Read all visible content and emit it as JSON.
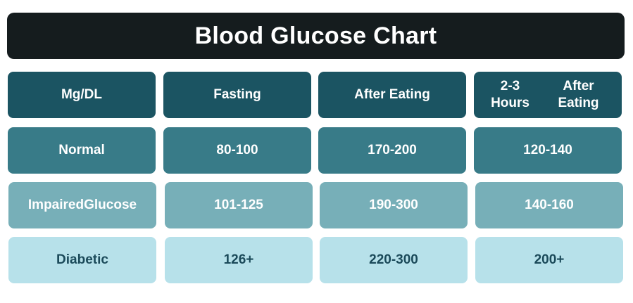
{
  "chart_data": {
    "type": "table",
    "title": "Blood Glucose Chart",
    "columns": [
      "Mg/DL",
      "Fasting",
      "After Eating",
      "2-3 Hours\nAfter Eating"
    ],
    "rows": [
      [
        "Normal",
        "80-100",
        "170-200",
        "120-140"
      ],
      [
        "Impaired\nGlucose",
        "101-125",
        "190-300",
        "140-160"
      ],
      [
        "Diabetic",
        "126+",
        "220-300",
        "200+"
      ]
    ]
  },
  "colors": {
    "title_bg": "#151c1e",
    "header_bg": "#1b5462",
    "normal_bg": "#387b88",
    "impaired_bg": "#77afb8",
    "diabetic_bg": "#b7e1ea",
    "diabetic_text": "#1b4a5a"
  }
}
